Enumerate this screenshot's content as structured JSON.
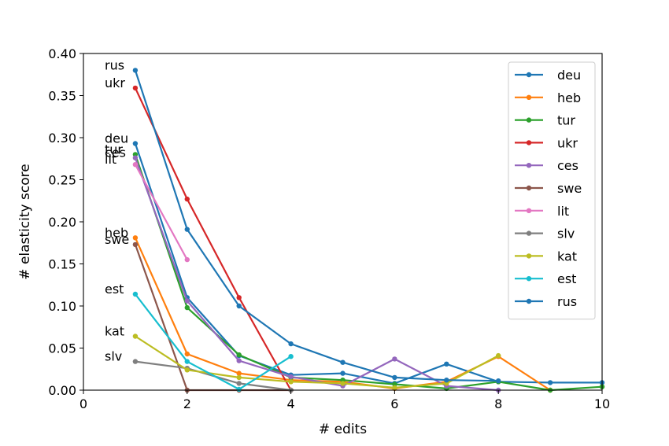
{
  "chart_data": {
    "type": "line",
    "title": "",
    "xlabel": "# edits",
    "ylabel": "# elasticity score",
    "xlim": [
      0,
      10
    ],
    "ylim": [
      0,
      0.4
    ],
    "xticks": [
      0,
      2,
      4,
      6,
      8,
      10
    ],
    "yticks": [
      0.0,
      0.05,
      0.1,
      0.15,
      0.2,
      0.25,
      0.3,
      0.35,
      0.4
    ],
    "ytick_labels": [
      "0.00",
      "0.05",
      "0.10",
      "0.15",
      "0.20",
      "0.25",
      "0.30",
      "0.35",
      "0.40"
    ],
    "grid": false,
    "legend_position": "top-right",
    "series": [
      {
        "name": "deu",
        "color": "#1f77b4",
        "x": [
          1,
          2,
          3,
          4,
          5,
          6,
          7,
          8,
          9,
          10
        ],
        "y": [
          0.293,
          0.11,
          0.041,
          0.018,
          0.02,
          0.008,
          0.031,
          0.01,
          0.009,
          0.009
        ]
      },
      {
        "name": "heb",
        "color": "#ff7f0e",
        "x": [
          1,
          2,
          3,
          4,
          5,
          6,
          7,
          8,
          9
        ],
        "y": [
          0.181,
          0.043,
          0.02,
          0.012,
          0.01,
          0.002,
          0.01,
          0.04,
          0.0
        ]
      },
      {
        "name": "tur",
        "color": "#2ca02c",
        "x": [
          1,
          2,
          3,
          4,
          5,
          6,
          7,
          8,
          9,
          10
        ],
        "y": [
          0.28,
          0.098,
          0.042,
          0.015,
          0.012,
          0.007,
          0.002,
          0.01,
          0.0,
          0.004
        ]
      },
      {
        "name": "ukr",
        "color": "#d62728",
        "x": [
          1,
          2,
          3,
          4
        ],
        "y": [
          0.359,
          0.227,
          0.11,
          0.0
        ]
      },
      {
        "name": "ces",
        "color": "#9467bd",
        "x": [
          1,
          2,
          3,
          4,
          5,
          6,
          7,
          8
        ],
        "y": [
          0.276,
          0.106,
          0.035,
          0.016,
          0.005,
          0.037,
          0.005,
          0.0
        ]
      },
      {
        "name": "swe",
        "color": "#8c564b",
        "x": [
          1,
          2,
          3,
          4
        ],
        "y": [
          0.173,
          0.0,
          0.0,
          0.0
        ]
      },
      {
        "name": "lit",
        "color": "#e377c2",
        "x": [
          1,
          2
        ],
        "y": [
          0.268,
          0.155
        ]
      },
      {
        "name": "slv",
        "color": "#7f7f7f",
        "x": [
          1,
          2,
          3,
          4
        ],
        "y": [
          0.034,
          0.026,
          0.008,
          0.0
        ]
      },
      {
        "name": "kat",
        "color": "#bcbd22",
        "x": [
          1,
          2,
          3,
          4,
          5,
          6,
          7,
          8
        ],
        "y": [
          0.064,
          0.024,
          0.015,
          0.01,
          0.008,
          0.003,
          0.008,
          0.041
        ]
      },
      {
        "name": "est",
        "color": "#17becf",
        "x": [
          1,
          2,
          3,
          4
        ],
        "y": [
          0.114,
          0.034,
          0.001,
          0.04
        ]
      },
      {
        "name": "rus",
        "color": "#1f77b4",
        "x": [
          1,
          2,
          3,
          4,
          5,
          6,
          7,
          8
        ],
        "y": [
          0.38,
          0.191,
          0.1,
          0.055,
          0.033,
          0.015,
          0.012,
          0.011
        ]
      }
    ],
    "annotations": [
      {
        "text": "rus",
        "y": 0.38
      },
      {
        "text": "ukr",
        "y": 0.359
      },
      {
        "text": "deu",
        "y": 0.293
      },
      {
        "text": "tur",
        "y": 0.28
      },
      {
        "text": "ces",
        "y": 0.276
      },
      {
        "text": "lit",
        "y": 0.268
      },
      {
        "text": "heb",
        "y": 0.181
      },
      {
        "text": "swe",
        "y": 0.173
      },
      {
        "text": "est",
        "y": 0.114
      },
      {
        "text": "kat",
        "y": 0.064
      },
      {
        "text": "slv",
        "y": 0.034
      }
    ]
  }
}
